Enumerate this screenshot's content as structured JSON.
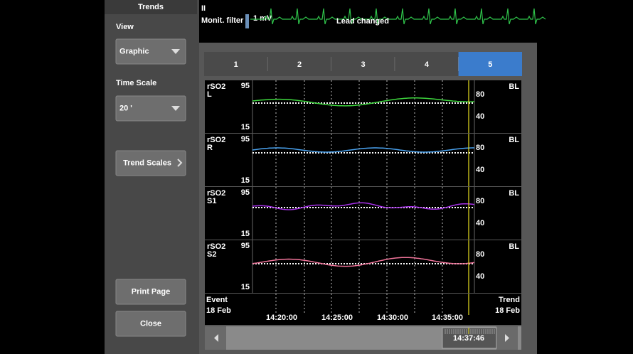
{
  "sidebar": {
    "title": "Trends",
    "view_label": "View",
    "view_value": "Graphic",
    "time_scale_label": "Time Scale",
    "time_scale_value": "20 '",
    "trend_scales": "Trend Scales",
    "print_page": "Print Page",
    "close": "Close"
  },
  "ecg": {
    "lead": "II",
    "filter": "Monit. filter",
    "scale": "1 mV",
    "message": "Lead changed"
  },
  "tabs": [
    "1",
    "2",
    "3",
    "4",
    "5"
  ],
  "panels": [
    {
      "param": "rSO2",
      "site": "L",
      "top": 95,
      "bottom": 15,
      "scale_high": 80,
      "scale_low": 40,
      "baseline": "BL"
    },
    {
      "param": "rSO2",
      "site": "R",
      "top": 95,
      "bottom": 15,
      "scale_high": 80,
      "scale_low": 40,
      "baseline": "BL"
    },
    {
      "param": "rSO2",
      "site": "S1",
      "top": 95,
      "bottom": 15,
      "scale_high": 80,
      "scale_low": 40,
      "baseline": "BL"
    },
    {
      "param": "rSO2",
      "site": "S2",
      "top": 95,
      "bottom": 15,
      "scale_high": 80,
      "scale_low": 40,
      "baseline": "BL"
    }
  ],
  "time_axis": {
    "event": "Event",
    "event_date": "18 Feb",
    "trend": "Trend",
    "trend_date": "18 Feb",
    "ticks": [
      "14:20:00",
      "14:25:00",
      "14:30:00",
      "14:35:00"
    ]
  },
  "scroll": {
    "time": "14:37:46"
  }
}
